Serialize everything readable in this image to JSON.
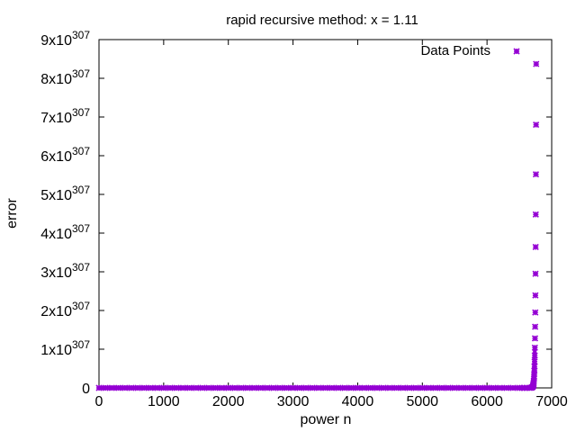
{
  "chart_data": {
    "type": "scatter",
    "title": "rapid recursive method: x = 1.11",
    "xlabel": "power n",
    "ylabel": "error",
    "xlim": [
      0,
      7000
    ],
    "ylim": [
      0,
      9e+307
    ],
    "xticks": [
      0,
      1000,
      2000,
      3000,
      4000,
      5000,
      6000,
      7000
    ],
    "xtick_labels": [
      "0",
      "1000",
      "2000",
      "3000",
      "4000",
      "5000",
      "6000",
      "7000"
    ],
    "yticks": [
      0,
      1e+307,
      2e+307,
      3e+307,
      4e+307,
      5e+307,
      6e+307,
      7e+307,
      8e+307,
      9e+307
    ],
    "ytick_labels": [
      {
        "base": "0",
        "exp": ""
      },
      {
        "base": "1x10",
        "exp": "307"
      },
      {
        "base": "2x10",
        "exp": "307"
      },
      {
        "base": "3x10",
        "exp": "307"
      },
      {
        "base": "4x10",
        "exp": "307"
      },
      {
        "base": "5x10",
        "exp": "307"
      },
      {
        "base": "6x10",
        "exp": "307"
      },
      {
        "base": "7x10",
        "exp": "307"
      },
      {
        "base": "8x10",
        "exp": "307"
      },
      {
        "base": "9x10",
        "exp": "307"
      }
    ],
    "legend": {
      "label": "Data Points",
      "position": "top-right"
    },
    "grid": false,
    "series": [
      {
        "name": "Data Points",
        "color": "#9400d3",
        "marker": "star",
        "points": [
          [
            6760,
            8.37e+307
          ],
          [
            6758,
            6.8e+307
          ],
          [
            6756,
            5.52e+307
          ],
          [
            6754,
            4.48e+307
          ],
          [
            6752,
            3.64e+307
          ],
          [
            6750,
            2.95e+307
          ],
          [
            6748,
            2.39e+307
          ],
          [
            6746,
            1.95e+307
          ],
          [
            6744,
            1.58e+307
          ],
          [
            6742,
            1.28e+307
          ],
          [
            6740,
            1.04e+307
          ],
          [
            6738,
            8.4e+306
          ],
          [
            6736,
            6.8e+306
          ],
          [
            6734,
            5.5e+306
          ],
          [
            6732,
            4.5e+306
          ],
          [
            6730,
            3.6e+306
          ],
          [
            6728,
            2.9e+306
          ],
          [
            6726,
            2.4e+306
          ],
          [
            6724,
            1.9e+306
          ],
          [
            6722,
            1.5e+306
          ],
          [
            6720,
            1.2e+306
          ],
          [
            6718,
            9.5e+305
          ],
          [
            6716,
            7.5e+305
          ],
          [
            6714,
            6e+305
          ],
          [
            6712,
            4.5e+305
          ],
          [
            6710,
            3.5e+305
          ],
          [
            6705,
            2.5e+305
          ],
          [
            6700,
            1.5e+305
          ],
          [
            6690,
            1e+305
          ],
          [
            6680,
            5e+304
          ],
          [
            6660,
            0
          ],
          [
            6620,
            0
          ],
          [
            6580,
            0
          ],
          [
            6540,
            0
          ],
          [
            6500,
            0
          ],
          [
            6400,
            0
          ],
          [
            6300,
            0
          ],
          [
            6200,
            0
          ],
          [
            6100,
            0
          ],
          [
            6000,
            0
          ],
          [
            5900,
            0
          ],
          [
            5800,
            0
          ],
          [
            5700,
            0
          ],
          [
            5600,
            0
          ],
          [
            5500,
            0
          ],
          [
            5400,
            0
          ],
          [
            5300,
            0
          ],
          [
            5200,
            0
          ],
          [
            5100,
            0
          ],
          [
            5000,
            0
          ],
          [
            4900,
            0
          ],
          [
            4800,
            0
          ],
          [
            4700,
            0
          ],
          [
            4600,
            0
          ],
          [
            4500,
            0
          ],
          [
            4400,
            0
          ],
          [
            4300,
            0
          ],
          [
            4200,
            0
          ],
          [
            4100,
            0
          ],
          [
            4000,
            0
          ],
          [
            3900,
            0
          ],
          [
            3800,
            0
          ],
          [
            3700,
            0
          ],
          [
            3600,
            0
          ],
          [
            3500,
            0
          ],
          [
            3400,
            0
          ],
          [
            3300,
            0
          ],
          [
            3200,
            0
          ],
          [
            3100,
            0
          ],
          [
            3000,
            0
          ],
          [
            2900,
            0
          ],
          [
            2800,
            0
          ],
          [
            2700,
            0
          ],
          [
            2600,
            0
          ],
          [
            2500,
            0
          ],
          [
            2400,
            0
          ],
          [
            2300,
            0
          ],
          [
            2200,
            0
          ],
          [
            2100,
            0
          ],
          [
            2000,
            0
          ],
          [
            1900,
            0
          ],
          [
            1800,
            0
          ],
          [
            1700,
            0
          ],
          [
            1600,
            0
          ],
          [
            1500,
            0
          ],
          [
            1400,
            0
          ],
          [
            1300,
            0
          ],
          [
            1200,
            0
          ],
          [
            1100,
            0
          ],
          [
            1000,
            0
          ],
          [
            900,
            0
          ],
          [
            800,
            0
          ],
          [
            700,
            0
          ],
          [
            600,
            0
          ],
          [
            500,
            0
          ],
          [
            400,
            0
          ],
          [
            300,
            0
          ],
          [
            200,
            0
          ],
          [
            100,
            0
          ],
          [
            0,
            0
          ]
        ]
      }
    ]
  }
}
